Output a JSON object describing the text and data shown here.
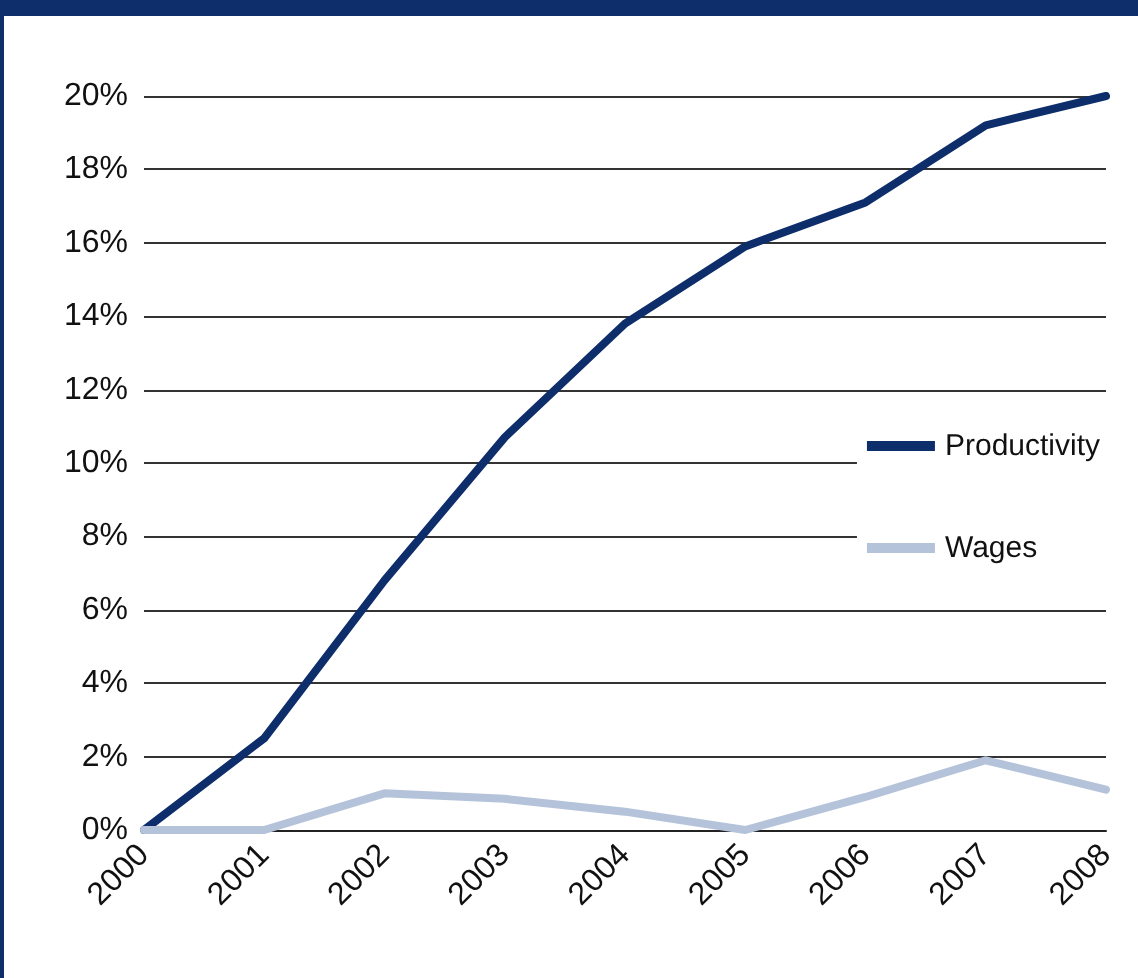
{
  "chart_data": {
    "type": "line",
    "categories": [
      "2000",
      "2001",
      "2002",
      "2003",
      "2004",
      "2005",
      "2006",
      "2007",
      "2008"
    ],
    "series": [
      {
        "name": "Productivity",
        "color": "#0d2d6b",
        "values": [
          0,
          2.5,
          6.8,
          10.7,
          13.8,
          15.9,
          17.1,
          19.2,
          20
        ]
      },
      {
        "name": "Wages",
        "color": "#b4c3da",
        "values": [
          0,
          0,
          1.0,
          0.85,
          0.5,
          0,
          0.9,
          1.9,
          1.1
        ]
      }
    ],
    "ylim": [
      0,
      20
    ],
    "yticks": [
      {
        "value": 0,
        "label": "0%"
      },
      {
        "value": 2,
        "label": "2%"
      },
      {
        "value": 4,
        "label": "4%"
      },
      {
        "value": 6,
        "label": "6%"
      },
      {
        "value": 8,
        "label": "8%"
      },
      {
        "value": 10,
        "label": "10%"
      },
      {
        "value": 12,
        "label": "12%"
      },
      {
        "value": 14,
        "label": "14%"
      },
      {
        "value": 16,
        "label": "16%"
      },
      {
        "value": 18,
        "label": "18%"
      },
      {
        "value": 20,
        "label": "20%"
      }
    ],
    "grid": "y",
    "legend": "right",
    "marker": "none",
    "line_style": "solid"
  }
}
